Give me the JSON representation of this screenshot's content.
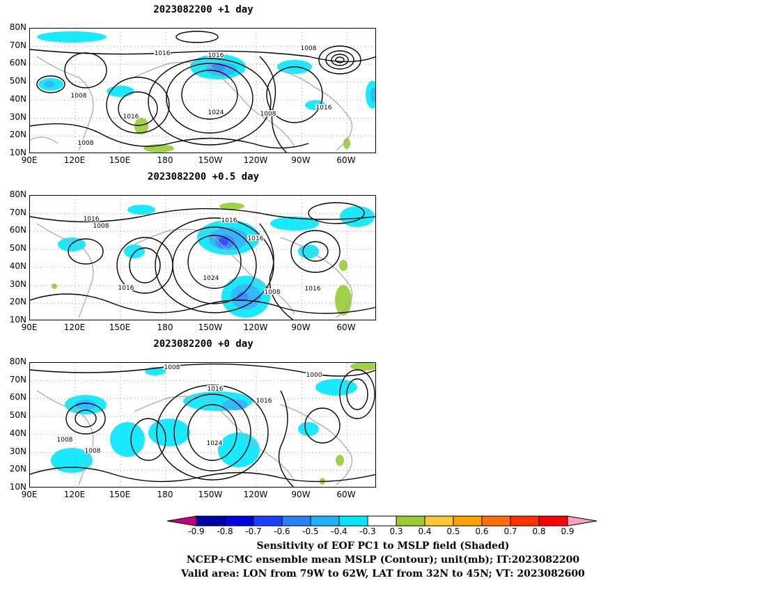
{
  "panels": [
    {
      "title": "2023082200  +1 day",
      "contour_labels": [
        "1016",
        "1016",
        "1008",
        "1008",
        "1016",
        "1024",
        "1008",
        "1016",
        "1008"
      ]
    },
    {
      "title": "2023082200  +0.5 day",
      "contour_labels": [
        "1016",
        "1008",
        "1016",
        "1016",
        "1024",
        "1016",
        "1008",
        "1016"
      ]
    },
    {
      "title": "2023082200  +0 day",
      "contour_labels": [
        "1008",
        "1000",
        "1016",
        "1016",
        "1008",
        "1008",
        "1024"
      ]
    }
  ],
  "axes": {
    "lat_labels": [
      "80N",
      "70N",
      "60N",
      "50N",
      "40N",
      "30N",
      "20N",
      "10N"
    ],
    "lon_labels": [
      "90E",
      "120E",
      "150E",
      "180",
      "150W",
      "120W",
      "90W",
      "60W"
    ]
  },
  "colorbar": {
    "ticks": [
      "-0.9",
      "-0.8",
      "-0.7",
      "-0.6",
      "-0.5",
      "-0.4",
      "-0.3",
      "0.3",
      "0.4",
      "0.5",
      "0.6",
      "0.7",
      "0.8",
      "0.9"
    ],
    "colors": [
      "#c5007f",
      "#0000a8",
      "#0000e1",
      "#1b40ff",
      "#2a80ff",
      "#1fb1ff",
      "#00e8ff",
      "#ffffff",
      "#96cd32",
      "#ffc832",
      "#ffa000",
      "#ff6e00",
      "#ff3200",
      "#ff0000",
      "#ff9fc6"
    ]
  },
  "footer": {
    "line1": "Sensitivity of EOF PC1 to MSLP field (Shaded)",
    "line2": "NCEP+CMC ensemble mean MSLP (Contour); unit(mb); IT:2023082200",
    "line3": "Valid area: LON from 79W to 62W, LAT from 32N to 45N; VT: 2023082600"
  }
}
